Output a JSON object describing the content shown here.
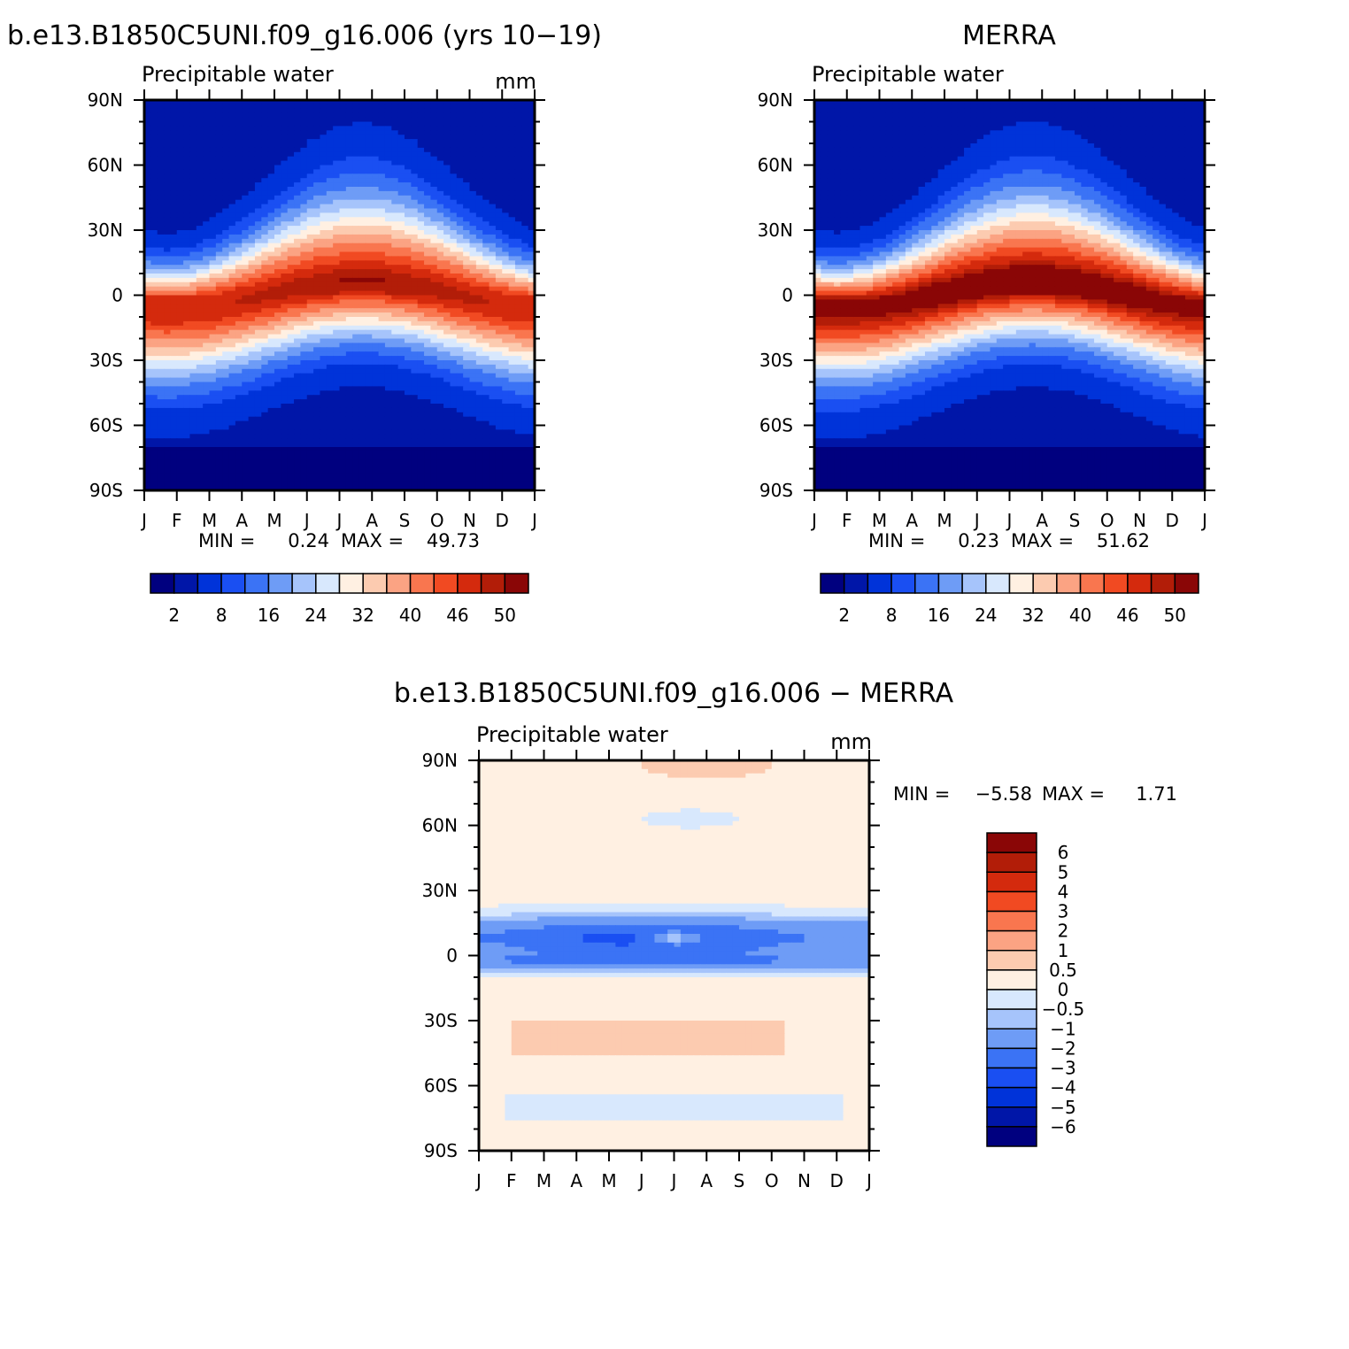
{
  "chart_data": [
    {
      "type": "heatmap",
      "title": "b.e13.B1850C5UNI.f09_g16.006 (yrs 10−19)",
      "subtitle_left": "Precipitable water",
      "units": "mm",
      "x_ticks": [
        "J",
        "F",
        "M",
        "A",
        "M",
        "J",
        "J",
        "A",
        "S",
        "O",
        "N",
        "D",
        "J"
      ],
      "y_ticks": [
        "90N",
        "60N",
        "30N",
        "0",
        "30S",
        "60S",
        "90S"
      ],
      "y_values": [
        90,
        60,
        30,
        0,
        -30,
        -60,
        -90
      ],
      "min_label": "MIN =",
      "min_value": "0.24",
      "max_label": "MAX =",
      "max_value": "49.73",
      "colorbar_labels": [
        "2",
        "8",
        "16",
        "24",
        "32",
        "40",
        "46",
        "50"
      ],
      "data_range": [
        0.24,
        49.73
      ]
    },
    {
      "type": "heatmap",
      "title": "MERRA",
      "subtitle_left": "Precipitable water",
      "units": "",
      "x_ticks": [
        "J",
        "F",
        "M",
        "A",
        "M",
        "J",
        "J",
        "A",
        "S",
        "O",
        "N",
        "D",
        "J"
      ],
      "y_ticks": [
        "90N",
        "60N",
        "30N",
        "0",
        "30S",
        "60S",
        "90S"
      ],
      "y_values": [
        90,
        60,
        30,
        0,
        -30,
        -60,
        -90
      ],
      "min_label": "MIN =",
      "min_value": "0.23",
      "max_label": "MAX =",
      "max_value": "51.62",
      "colorbar_labels": [
        "2",
        "8",
        "16",
        "24",
        "32",
        "40",
        "46",
        "50"
      ],
      "data_range": [
        0.23,
        51.62
      ]
    },
    {
      "type": "heatmap",
      "title": "b.e13.B1850C5UNI.f09_g16.006 − MERRA",
      "subtitle_left": "Precipitable water",
      "units": "mm",
      "x_ticks": [
        "J",
        "F",
        "M",
        "A",
        "M",
        "J",
        "J",
        "A",
        "S",
        "O",
        "N",
        "D",
        "J"
      ],
      "y_ticks": [
        "90N",
        "60N",
        "30N",
        "0",
        "30S",
        "60S",
        "90S"
      ],
      "y_values": [
        90,
        60,
        30,
        0,
        -30,
        -60,
        -90
      ],
      "min_label": "MIN =",
      "min_value": "−5.58",
      "max_label": "MAX =",
      "max_value": "1.71",
      "colorbar_labels": [
        "6",
        "5",
        "4",
        "3",
        "2",
        "1",
        "0.5",
        "0",
        "−0.5",
        "−1",
        "−2",
        "−3",
        "−4",
        "−5",
        "−6"
      ],
      "data_range": [
        -5.58,
        1.71
      ]
    }
  ],
  "colors": {
    "abs_scale": [
      "#00007f",
      "#0016a8",
      "#0033d9",
      "#1a4ff2",
      "#3b73f5",
      "#6e9cf6",
      "#a6c4fb",
      "#d8e8fd",
      "#fff0e2",
      "#fccbb0",
      "#fba383",
      "#f9764f",
      "#f14a22",
      "#d42a0d",
      "#b21d08",
      "#8a0606"
    ],
    "diff_scale": [
      "#8a0606",
      "#b21d08",
      "#d42a0d",
      "#f14a22",
      "#f9764f",
      "#fba383",
      "#fccbb0",
      "#fff0e2",
      "#d8e8fd",
      "#a6c4fb",
      "#6e9cf6",
      "#3b73f5",
      "#1a4ff2",
      "#0033d9",
      "#0016a8",
      "#00007f"
    ]
  }
}
